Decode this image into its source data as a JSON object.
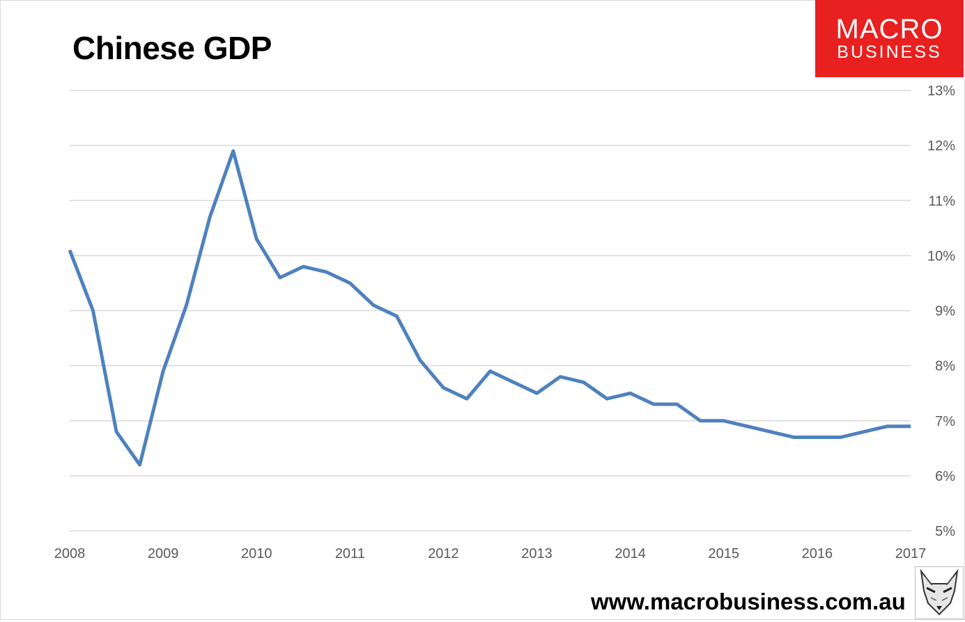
{
  "header": {
    "title": "Chinese GDP",
    "logo_line1": "MACRO",
    "logo_line2": "BUSINESS",
    "logo_color": "#e8201f"
  },
  "footer": {
    "url": "www.macrobusiness.com.au",
    "badge_icon": "fox-icon"
  },
  "chart_data": {
    "type": "line",
    "title": "Chinese GDP",
    "xlabel": "",
    "ylabel": "",
    "xlim": [
      2008,
      2017
    ],
    "ylim": [
      5,
      13
    ],
    "x_ticks": [
      2008,
      2009,
      2010,
      2011,
      2012,
      2013,
      2014,
      2015,
      2016,
      2017
    ],
    "y_ticks": [
      "5%",
      "6%",
      "7%",
      "8%",
      "9%",
      "10%",
      "11%",
      "12%",
      "13%"
    ],
    "y_axis_position": "right",
    "grid": "horizontal",
    "series": [
      {
        "color": "#4f81bd",
        "x": [
          2008.0,
          2008.25,
          2008.5,
          2008.75,
          2009.0,
          2009.25,
          2009.5,
          2009.75,
          2010.0,
          2010.25,
          2010.5,
          2010.75,
          2011.0,
          2011.25,
          2011.5,
          2011.75,
          2012.0,
          2012.25,
          2012.5,
          2012.75,
          2013.0,
          2013.25,
          2013.5,
          2013.75,
          2014.0,
          2014.25,
          2014.5,
          2014.75,
          2015.0,
          2015.25,
          2015.5,
          2015.75,
          2016.0,
          2016.25,
          2016.5,
          2016.75,
          2017.0
        ],
        "values": [
          10.1,
          9.0,
          6.8,
          6.2,
          7.9,
          9.1,
          10.7,
          11.9,
          10.3,
          9.6,
          9.8,
          9.7,
          9.5,
          9.1,
          8.9,
          8.1,
          7.6,
          7.4,
          7.9,
          7.7,
          7.5,
          7.8,
          7.7,
          7.4,
          7.5,
          7.3,
          7.3,
          7.0,
          7.0,
          6.9,
          6.8,
          6.7,
          6.7,
          6.7,
          6.8,
          6.9,
          6.9
        ]
      }
    ]
  }
}
